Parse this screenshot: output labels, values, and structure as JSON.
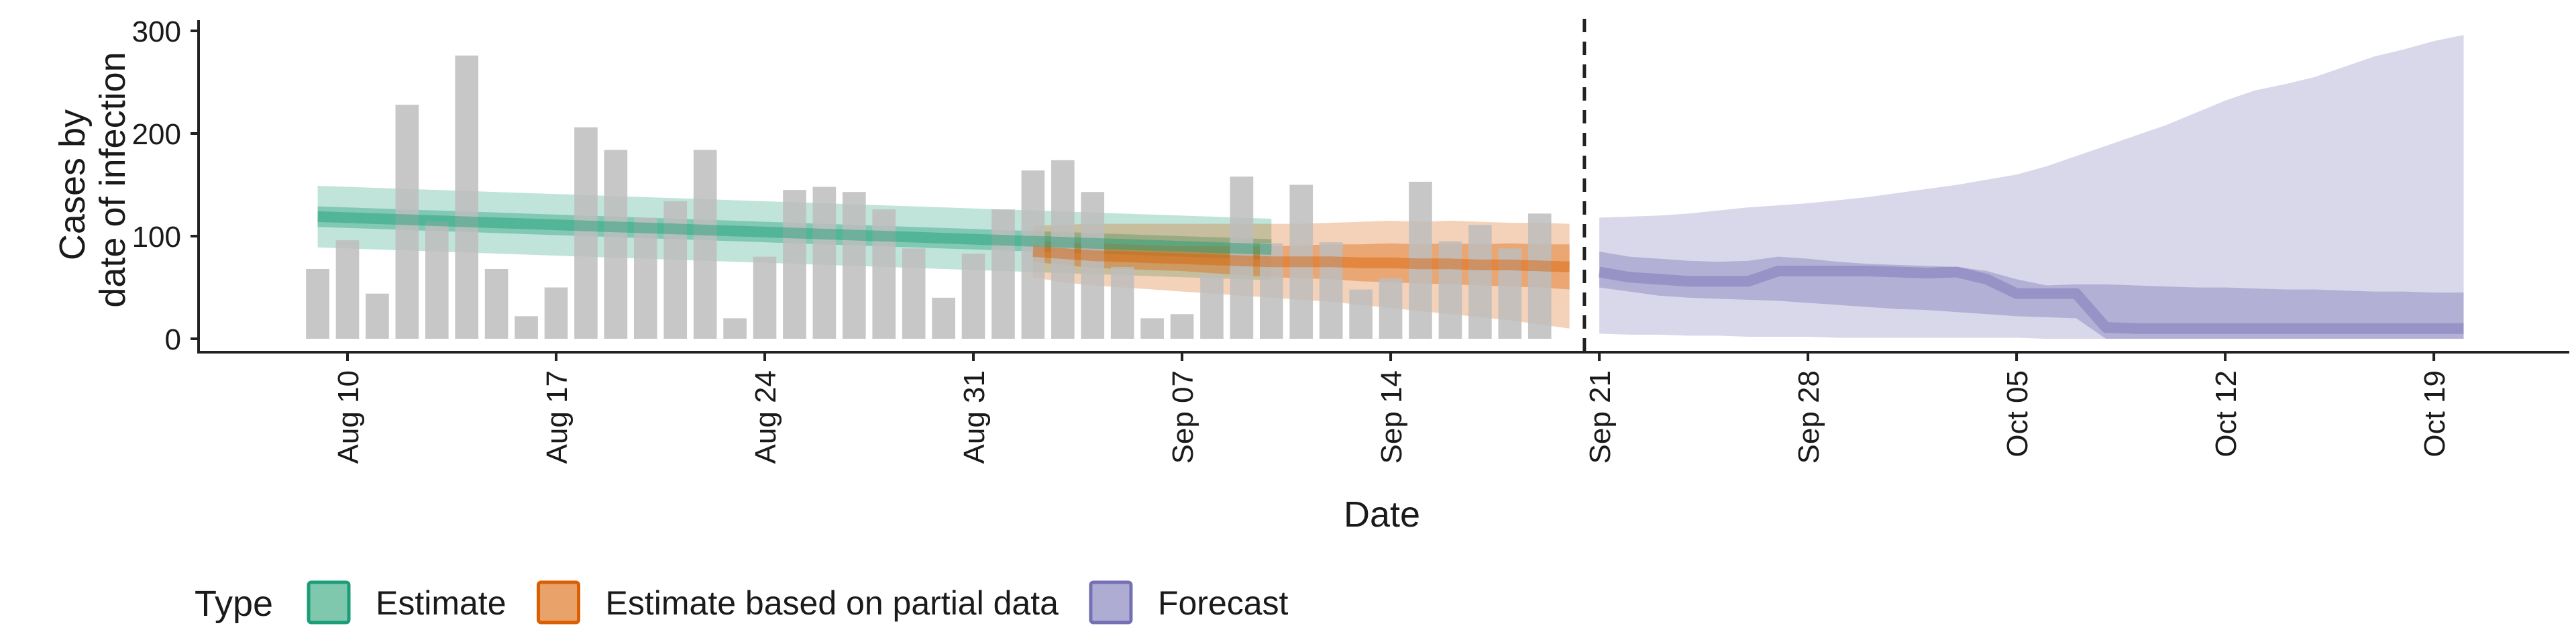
{
  "chart_data": {
    "type": "bar+area",
    "xlabel": "Date",
    "ylabel": [
      "Cases by",
      "date of infection"
    ],
    "ylim": [
      0,
      300
    ],
    "yticks": [
      0,
      100,
      200,
      300
    ],
    "xticks": [
      {
        "date": "2020-08-10",
        "label": "Aug 10"
      },
      {
        "date": "2020-08-17",
        "label": "Aug 17"
      },
      {
        "date": "2020-08-24",
        "label": "Aug 24"
      },
      {
        "date": "2020-08-31",
        "label": "Aug 31"
      },
      {
        "date": "2020-09-07",
        "label": "Sep 07"
      },
      {
        "date": "2020-09-14",
        "label": "Sep 14"
      },
      {
        "date": "2020-09-21",
        "label": "Sep 21"
      },
      {
        "date": "2020-09-28",
        "label": "Sep 28"
      },
      {
        "date": "2020-10-05",
        "label": "Oct 05"
      },
      {
        "date": "2020-10-12",
        "label": "Oct 12"
      },
      {
        "date": "2020-10-19",
        "label": "Oct 19"
      }
    ],
    "forecast_start": "2020-09-20",
    "bars": {
      "start_date": "2020-08-09",
      "values": [
        68,
        96,
        44,
        228,
        114,
        276,
        68,
        22,
        50,
        206,
        184,
        118,
        134,
        184,
        20,
        80,
        145,
        148,
        143,
        126,
        88,
        40,
        83,
        126,
        164,
        174,
        143,
        70,
        20,
        24,
        63,
        158,
        93,
        150,
        94,
        48,
        59,
        153,
        95,
        111,
        88,
        122
      ]
    },
    "series": [
      {
        "name": "Estimate",
        "color": "#1b9e77",
        "start_date": "2020-08-09",
        "median": [
          119,
          118,
          117,
          116,
          115,
          114,
          113,
          112,
          111,
          110,
          109,
          108,
          107,
          106,
          105,
          104,
          103,
          102,
          101,
          100,
          99,
          98,
          97,
          96,
          95,
          94,
          93,
          92,
          91,
          90,
          89,
          88,
          87
        ],
        "inner": [
          [
            109,
            129
          ],
          [
            108,
            128
          ],
          [
            107,
            127
          ],
          [
            106,
            126
          ],
          [
            105,
            125
          ],
          [
            104,
            124
          ],
          [
            103,
            123
          ],
          [
            102,
            122
          ],
          [
            101,
            121
          ],
          [
            100,
            120
          ],
          [
            99,
            119
          ],
          [
            98,
            118
          ],
          [
            97,
            117
          ],
          [
            96,
            116
          ],
          [
            95,
            115
          ],
          [
            94,
            114
          ],
          [
            93,
            113
          ],
          [
            92,
            112
          ],
          [
            91,
            111
          ],
          [
            90,
            110
          ],
          [
            89,
            109
          ],
          [
            88,
            108
          ],
          [
            87,
            107
          ],
          [
            86,
            106
          ],
          [
            85,
            105
          ],
          [
            84,
            104
          ],
          [
            83,
            103
          ],
          [
            82,
            102
          ],
          [
            81,
            101
          ],
          [
            80,
            100
          ],
          [
            79,
            99
          ],
          [
            78,
            98
          ],
          [
            77,
            97
          ]
        ],
        "outer": [
          [
            89,
            149
          ],
          [
            88,
            148
          ],
          [
            87,
            147
          ],
          [
            86,
            146
          ],
          [
            85,
            145
          ],
          [
            84,
            144
          ],
          [
            83,
            143
          ],
          [
            82,
            142
          ],
          [
            81,
            141
          ],
          [
            80,
            140
          ],
          [
            79,
            139
          ],
          [
            78,
            138
          ],
          [
            77,
            137
          ],
          [
            76,
            136
          ],
          [
            75,
            135
          ],
          [
            74,
            134
          ],
          [
            73,
            133
          ],
          [
            72,
            132
          ],
          [
            71,
            131
          ],
          [
            70,
            130
          ],
          [
            69,
            129
          ],
          [
            68,
            128
          ],
          [
            67,
            127
          ],
          [
            66,
            126
          ],
          [
            65,
            125
          ],
          [
            64,
            124
          ],
          [
            63,
            123
          ],
          [
            62,
            122
          ],
          [
            61,
            121
          ],
          [
            60,
            120
          ],
          [
            59,
            119
          ],
          [
            58,
            118
          ],
          [
            57,
            117
          ]
        ]
      },
      {
        "name": "Estimate based on partial data",
        "color": "#d95f02",
        "start_date": "2020-09-02",
        "median": [
          85,
          83,
          81,
          80,
          79,
          78,
          77,
          76,
          75,
          75,
          75,
          74,
          74,
          73,
          73,
          72,
          72,
          71,
          70
        ],
        "inner": [
          [
            75,
            95
          ],
          [
            72,
            94
          ],
          [
            69,
            93
          ],
          [
            68,
            92
          ],
          [
            67,
            91
          ],
          [
            66,
            90
          ],
          [
            64,
            90
          ],
          [
            62,
            90
          ],
          [
            60,
            90
          ],
          [
            59,
            91
          ],
          [
            58,
            92
          ],
          [
            56,
            92
          ],
          [
            55,
            93
          ],
          [
            54,
            92
          ],
          [
            53,
            93
          ],
          [
            52,
            92
          ],
          [
            51,
            93
          ],
          [
            50,
            92
          ],
          [
            48,
            92
          ]
        ],
        "outer": [
          [
            60,
            110
          ],
          [
            55,
            111
          ],
          [
            52,
            112
          ],
          [
            50,
            112
          ],
          [
            48,
            112
          ],
          [
            46,
            112
          ],
          [
            44,
            112
          ],
          [
            42,
            112
          ],
          [
            40,
            112
          ],
          [
            38,
            112
          ],
          [
            36,
            113
          ],
          [
            33,
            114
          ],
          [
            30,
            115
          ],
          [
            27,
            114
          ],
          [
            24,
            115
          ],
          [
            21,
            114
          ],
          [
            18,
            113
          ],
          [
            14,
            113
          ],
          [
            10,
            112
          ]
        ]
      },
      {
        "name": "Forecast",
        "color": "#7570b3",
        "start_date": "2020-09-21",
        "median": [
          65,
          60,
          58,
          56,
          56,
          56,
          66,
          66,
          66,
          66,
          65,
          64,
          65,
          58,
          44,
          44,
          44,
          11,
          10,
          10,
          10,
          10,
          10,
          10,
          10,
          10,
          10,
          10,
          10,
          10
        ],
        "inner": [
          [
            50,
            85
          ],
          [
            46,
            80
          ],
          [
            42,
            78
          ],
          [
            40,
            76
          ],
          [
            39,
            75
          ],
          [
            38,
            76
          ],
          [
            37,
            80
          ],
          [
            35,
            78
          ],
          [
            33,
            75
          ],
          [
            31,
            73
          ],
          [
            29,
            72
          ],
          [
            28,
            71
          ],
          [
            26,
            70
          ],
          [
            24,
            66
          ],
          [
            22,
            58
          ],
          [
            21,
            52
          ],
          [
            20,
            53
          ],
          [
            0,
            53
          ],
          [
            0,
            52
          ],
          [
            0,
            51
          ],
          [
            0,
            50
          ],
          [
            0,
            50
          ],
          [
            0,
            49
          ],
          [
            0,
            48
          ],
          [
            0,
            48
          ],
          [
            0,
            47
          ],
          [
            0,
            46
          ],
          [
            0,
            46
          ],
          [
            0,
            45
          ],
          [
            0,
            45
          ]
        ],
        "outer": [
          [
            5,
            118
          ],
          [
            4,
            119
          ],
          [
            4,
            120
          ],
          [
            3,
            122
          ],
          [
            3,
            125
          ],
          [
            2,
            128
          ],
          [
            2,
            130
          ],
          [
            2,
            132
          ],
          [
            1,
            135
          ],
          [
            1,
            138
          ],
          [
            1,
            142
          ],
          [
            1,
            146
          ],
          [
            1,
            150
          ],
          [
            1,
            155
          ],
          [
            1,
            160
          ],
          [
            0,
            168
          ],
          [
            0,
            178
          ],
          [
            0,
            188
          ],
          [
            0,
            198
          ],
          [
            0,
            208
          ],
          [
            0,
            220
          ],
          [
            0,
            232
          ],
          [
            0,
            242
          ],
          [
            0,
            248
          ],
          [
            0,
            255
          ],
          [
            0,
            265
          ],
          [
            0,
            275
          ],
          [
            0,
            282
          ],
          [
            0,
            290
          ],
          [
            0,
            296
          ]
        ]
      }
    ],
    "legend": {
      "title": "Type",
      "position": "bottom",
      "items": [
        {
          "label": "Estimate",
          "fill": "#7fc8ae",
          "border": "#1b9e77"
        },
        {
          "label": "Estimate based on partial data",
          "fill": "#e8a26a",
          "border": "#d95f02"
        },
        {
          "label": "Forecast",
          "fill": "#afacd4",
          "border": "#7570b3"
        }
      ]
    },
    "grid": false,
    "bar_color": "#bdbdbd"
  }
}
